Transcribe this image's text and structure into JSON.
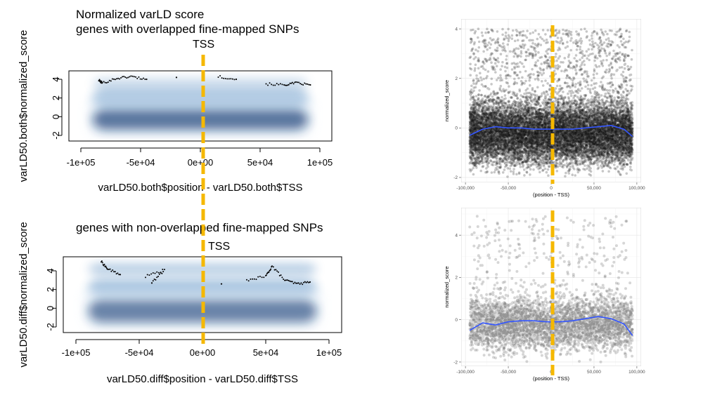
{
  "annotations": {
    "title_line1": "Normalized varLD score",
    "title_line2": "genes with overlapped fine-mapped SNPs",
    "title_bottom": "genes with non-overlapped fine-mapped SNPs",
    "tss": "TSS"
  },
  "colors": {
    "tss_line": "#f5b800",
    "density_dark": "#08306b",
    "density_mid": "#2f6fb0",
    "density_light": "#d6e6f5",
    "smooth_line": "#3355ff",
    "points": "#000000"
  },
  "chart_data": [
    {
      "id": "top-left",
      "type": "heatmap",
      "title": "",
      "xlabel": "varLD50.both$position - varLD50.both$TSS",
      "ylabel": "varLD50.both$normalized_score",
      "x_ticks": [
        "-1e+05",
        "-5e+04",
        "0e+00",
        "5e+04",
        "1e+05"
      ],
      "x_tick_values": [
        -100000,
        -50000,
        0,
        50000,
        100000
      ],
      "y_ticks": [
        "-2",
        "0",
        "2",
        "4"
      ],
      "y_tick_values": [
        -2,
        0,
        2,
        4
      ],
      "xlim": [
        -110000,
        110000
      ],
      "ylim": [
        -2.6,
        4.9
      ],
      "density_bands": [
        [
          -0.3,
          1.1,
          0.95
        ],
        [
          1.9,
          1.0,
          0.45
        ],
        [
          3.5,
          0.6,
          0.25
        ]
      ],
      "outliers": [
        [
          -85000,
          3.9
        ],
        [
          -82000,
          3.6
        ],
        [
          -70000,
          4.1
        ],
        [
          -58000,
          4.3
        ],
        [
          -45000,
          4.0
        ],
        [
          -20000,
          4.2
        ],
        [
          15000,
          4.3
        ],
        [
          30000,
          4.0
        ],
        [
          55000,
          3.5
        ],
        [
          70000,
          3.4
        ],
        [
          80000,
          3.6
        ],
        [
          92000,
          3.4
        ]
      ],
      "grid": false
    },
    {
      "id": "bottom-left",
      "type": "heatmap",
      "title": "",
      "xlabel": "varLD50.diff$position - varLD50.diff$TSS",
      "ylabel": "varLD50.diff$normalized_score",
      "x_ticks": [
        "-1e+05",
        "-5e+04",
        "0e+00",
        "5e+04",
        "1e+05"
      ],
      "x_tick_values": [
        -100000,
        -50000,
        0,
        50000,
        100000
      ],
      "y_ticks": [
        "-2",
        "0",
        "2",
        "4"
      ],
      "y_tick_values": [
        -2,
        0,
        2,
        4
      ],
      "xlim": [
        -110000,
        110000
      ],
      "ylim": [
        -2.6,
        5.5
      ],
      "density_bands": [
        [
          -0.3,
          1.2,
          0.85
        ],
        [
          2.2,
          0.9,
          0.45
        ],
        [
          4.2,
          0.6,
          0.35
        ]
      ],
      "outliers": [
        [
          -80000,
          5.0
        ],
        [
          -75000,
          4.2
        ],
        [
          -65000,
          3.6
        ],
        [
          -45000,
          3.4
        ],
        [
          -30000,
          4.1
        ],
        [
          -40000,
          2.7
        ],
        [
          15000,
          2.6
        ],
        [
          35000,
          3.0
        ],
        [
          50000,
          3.4
        ],
        [
          55000,
          4.5
        ],
        [
          65000,
          3.0
        ],
        [
          75000,
          2.6
        ],
        [
          85000,
          2.8
        ]
      ],
      "grid": false
    },
    {
      "id": "top-right",
      "type": "scatter",
      "title": "",
      "xlabel": "(position - TSS)",
      "ylabel": "normalized_score",
      "x_ticks": [
        "-100,000",
        "-50,000",
        "0",
        "50,000",
        "100,000"
      ],
      "x_tick_values": [
        -100000,
        -50000,
        0,
        50000,
        100000
      ],
      "y_ticks": [
        "-2",
        "0",
        "2",
        "4"
      ],
      "y_tick_values": [
        -2,
        0,
        2,
        4
      ],
      "xlim": [
        -105000,
        105000
      ],
      "ylim": [
        -2.2,
        4.4
      ],
      "point_density": "very high",
      "smooth_x": [
        -95000,
        -80000,
        -65000,
        -50000,
        -35000,
        -20000,
        -5000,
        10000,
        25000,
        40000,
        55000,
        70000,
        85000,
        95000
      ],
      "smooth_y": [
        -0.3,
        -0.05,
        0.05,
        0.0,
        0.0,
        -0.05,
        -0.05,
        -0.05,
        -0.05,
        0.0,
        0.05,
        0.1,
        -0.05,
        -0.35
      ],
      "grid": true
    },
    {
      "id": "bottom-right",
      "type": "scatter",
      "title": "",
      "xlabel": "(position - TSS)",
      "ylabel": "normalized_score",
      "x_ticks": [
        "-100,000",
        "-50,000",
        "0",
        "50,000",
        "100,000"
      ],
      "x_tick_values": [
        -100000,
        -50000,
        0,
        50000,
        100000
      ],
      "y_ticks": [
        "-2",
        "0",
        "2",
        "4"
      ],
      "y_tick_values": [
        -2,
        0,
        2,
        4
      ],
      "xlim": [
        -105000,
        105000
      ],
      "ylim": [
        -2.2,
        5.3
      ],
      "point_density": "moderate",
      "smooth_x": [
        -95000,
        -80000,
        -65000,
        -50000,
        -35000,
        -20000,
        -5000,
        10000,
        25000,
        40000,
        55000,
        70000,
        85000,
        95000
      ],
      "smooth_y": [
        -0.5,
        -0.15,
        -0.25,
        -0.1,
        -0.05,
        -0.05,
        -0.1,
        -0.1,
        -0.05,
        0.05,
        0.15,
        0.05,
        -0.2,
        -0.75
      ],
      "grid": true
    }
  ]
}
